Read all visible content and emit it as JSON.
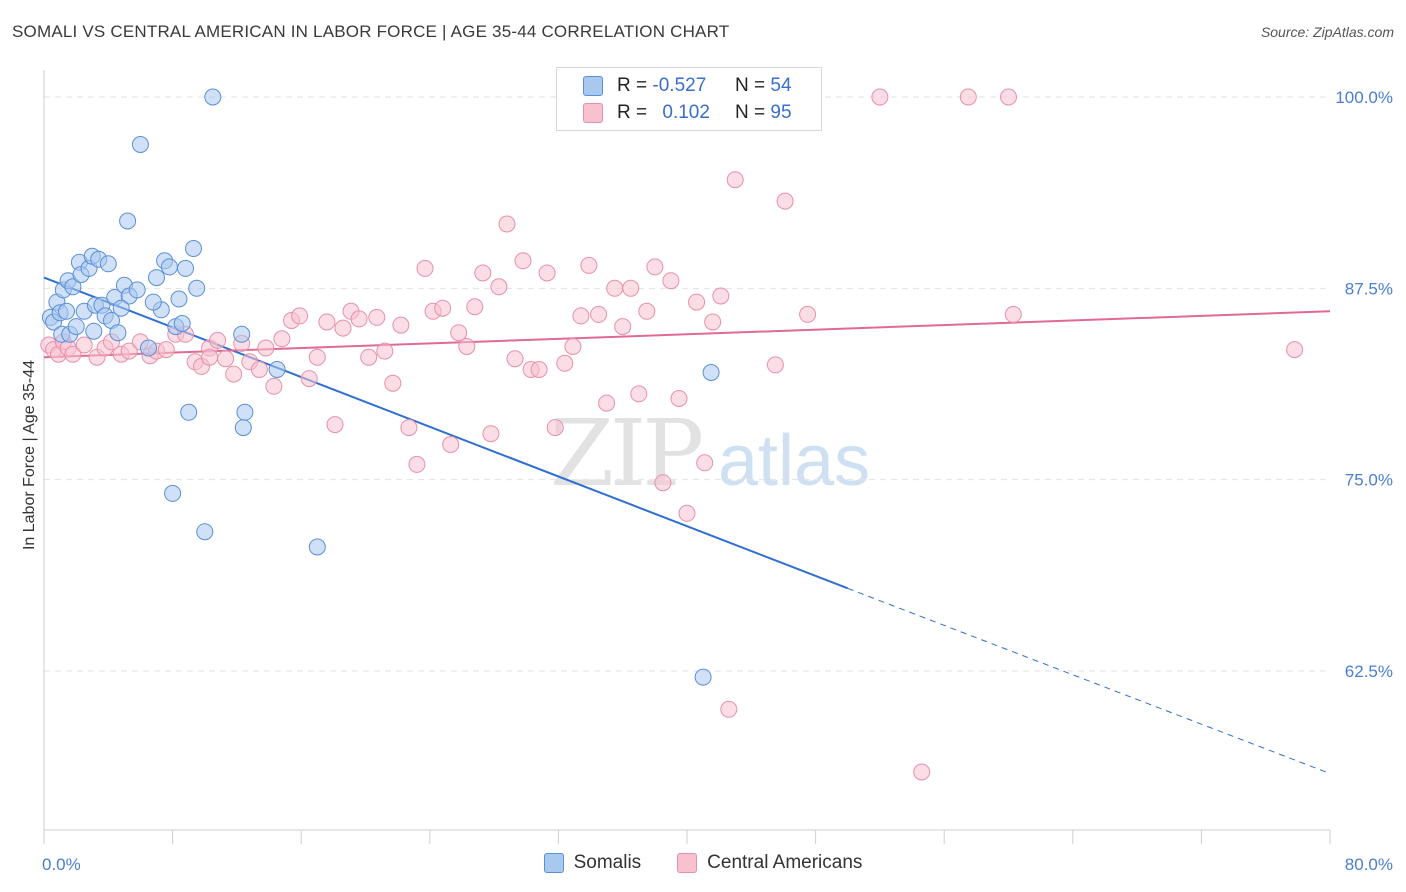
{
  "title": "SOMALI VS CENTRAL AMERICAN IN LABOR FORCE | AGE 35-44 CORRELATION CHART",
  "source": "Source: ZipAtlas.com",
  "watermark": {
    "zip": "ZIP",
    "atlas": "atlas"
  },
  "legend": {
    "rows": [
      {
        "r_label": "R =",
        "r_value": "-0.527",
        "n_label": "N =",
        "n_value": "54"
      },
      {
        "r_label": "R =",
        "r_value": "0.102",
        "n_label": "N =",
        "n_value": "95"
      }
    ]
  },
  "bottom_legend": [
    "Somalis",
    "Central Americans"
  ],
  "colors": {
    "somalis_fill": "#a9c8f0",
    "somalis_stroke": "#5b8fd6",
    "somalis_line": "#2f6fd0",
    "central_fill": "#f7c1d0",
    "central_stroke": "#e690ab",
    "central_line": "#e06a93",
    "grid": "#e3e3e3",
    "axis_text": "#4a7fd0"
  },
  "chart_data": {
    "type": "scatter",
    "title": "SOMALI VS CENTRAL AMERICAN IN LABOR FORCE | AGE 35-44 CORRELATION CHART",
    "xlabel": "",
    "ylabel": "In Labor Force | Age 35-44",
    "xlim": [
      0,
      80
    ],
    "ylim": [
      52,
      102
    ],
    "x_tick_labels": [
      "0.0%",
      "80.0%"
    ],
    "y_ticks": [
      62.5,
      75.0,
      87.5,
      100.0
    ],
    "y_tick_labels": [
      "62.5%",
      "75.0%",
      "87.5%",
      "100.0%"
    ],
    "grid": true,
    "legend_position": "top-center",
    "series": [
      {
        "name": "Somalis",
        "R": -0.527,
        "N": 54,
        "trend": {
          "x0": 0,
          "y0": 88.2,
          "x1": 50.0,
          "y1": 67.9,
          "dashed_to_x": 80,
          "dashed_to_y": 55.8
        },
        "points": [
          [
            0.4,
            85.6
          ],
          [
            0.6,
            85.3
          ],
          [
            0.8,
            86.6
          ],
          [
            1.0,
            85.9
          ],
          [
            1.1,
            84.5
          ],
          [
            1.2,
            87.4
          ],
          [
            1.4,
            86.0
          ],
          [
            1.5,
            88.0
          ],
          [
            1.6,
            84.5
          ],
          [
            1.8,
            87.6
          ],
          [
            2.0,
            85.0
          ],
          [
            2.2,
            89.2
          ],
          [
            2.3,
            88.4
          ],
          [
            2.5,
            86.0
          ],
          [
            2.8,
            88.8
          ],
          [
            3.0,
            89.6
          ],
          [
            3.2,
            86.4
          ],
          [
            3.4,
            89.4
          ],
          [
            3.6,
            86.4
          ],
          [
            3.8,
            85.7
          ],
          [
            4.0,
            89.1
          ],
          [
            4.2,
            85.4
          ],
          [
            4.4,
            86.9
          ],
          [
            4.6,
            84.6
          ],
          [
            5.0,
            87.7
          ],
          [
            5.3,
            87.0
          ],
          [
            5.8,
            87.4
          ],
          [
            6.0,
            96.9
          ],
          [
            6.5,
            83.6
          ],
          [
            7.0,
            88.2
          ],
          [
            7.3,
            86.1
          ],
          [
            7.5,
            89.3
          ],
          [
            7.8,
            88.9
          ],
          [
            8.2,
            85.0
          ],
          [
            8.4,
            86.8
          ],
          [
            8.6,
            85.2
          ],
          [
            8.8,
            88.8
          ],
          [
            9.0,
            79.4
          ],
          [
            9.3,
            90.1
          ],
          [
            9.5,
            87.5
          ],
          [
            10.0,
            71.6
          ],
          [
            10.5,
            100.0
          ],
          [
            12.3,
            84.5
          ],
          [
            12.4,
            78.4
          ],
          [
            12.5,
            79.4
          ],
          [
            14.5,
            82.2
          ],
          [
            17.0,
            70.6
          ],
          [
            5.2,
            91.9
          ],
          [
            3.1,
            84.7
          ],
          [
            4.8,
            86.2
          ],
          [
            6.8,
            86.6
          ],
          [
            8.0,
            74.1
          ],
          [
            41.0,
            62.1
          ],
          [
            41.5,
            82.0
          ]
        ]
      },
      {
        "name": "Central Americans",
        "R": 0.102,
        "N": 95,
        "trend": {
          "x0": 0,
          "y0": 83.0,
          "x1": 80,
          "y1": 86.0
        },
        "points": [
          [
            0.3,
            83.8
          ],
          [
            0.6,
            83.5
          ],
          [
            0.9,
            83.2
          ],
          [
            1.2,
            84.0
          ],
          [
            1.5,
            83.6
          ],
          [
            1.8,
            83.2
          ],
          [
            2.5,
            83.8
          ],
          [
            3.3,
            83.0
          ],
          [
            3.8,
            83.6
          ],
          [
            4.2,
            84.0
          ],
          [
            4.8,
            83.2
          ],
          [
            5.3,
            83.4
          ],
          [
            6.0,
            84.0
          ],
          [
            6.6,
            83.1
          ],
          [
            7.0,
            83.4
          ],
          [
            7.6,
            83.5
          ],
          [
            8.2,
            84.5
          ],
          [
            8.8,
            84.5
          ],
          [
            9.4,
            82.7
          ],
          [
            9.8,
            82.4
          ],
          [
            10.3,
            83.6
          ],
          [
            10.8,
            84.1
          ],
          [
            11.3,
            82.9
          ],
          [
            11.8,
            81.9
          ],
          [
            12.3,
            83.9
          ],
          [
            12.8,
            82.7
          ],
          [
            13.4,
            82.2
          ],
          [
            13.8,
            83.6
          ],
          [
            14.3,
            81.1
          ],
          [
            14.8,
            84.2
          ],
          [
            15.4,
            85.4
          ],
          [
            15.9,
            85.7
          ],
          [
            16.5,
            81.6
          ],
          [
            17.0,
            83.0
          ],
          [
            17.6,
            85.3
          ],
          [
            18.1,
            78.6
          ],
          [
            18.6,
            84.9
          ],
          [
            19.1,
            86.0
          ],
          [
            19.6,
            85.5
          ],
          [
            20.2,
            83.0
          ],
          [
            20.7,
            85.6
          ],
          [
            21.2,
            83.4
          ],
          [
            21.7,
            81.3
          ],
          [
            22.2,
            85.1
          ],
          [
            22.7,
            78.4
          ],
          [
            23.2,
            76.0
          ],
          [
            23.7,
            88.8
          ],
          [
            24.2,
            86.0
          ],
          [
            24.8,
            86.2
          ],
          [
            25.3,
            77.3
          ],
          [
            25.8,
            84.6
          ],
          [
            26.3,
            83.7
          ],
          [
            26.8,
            86.3
          ],
          [
            27.3,
            88.5
          ],
          [
            27.8,
            78.0
          ],
          [
            28.3,
            87.6
          ],
          [
            28.8,
            91.7
          ],
          [
            29.3,
            82.9
          ],
          [
            29.8,
            89.3
          ],
          [
            30.3,
            82.2
          ],
          [
            30.8,
            82.2
          ],
          [
            31.3,
            88.5
          ],
          [
            31.8,
            78.4
          ],
          [
            32.4,
            82.6
          ],
          [
            32.9,
            83.7
          ],
          [
            33.4,
            85.7
          ],
          [
            33.9,
            89.0
          ],
          [
            34.5,
            85.8
          ],
          [
            35.0,
            80.0
          ],
          [
            35.5,
            87.5
          ],
          [
            36.0,
            85.0
          ],
          [
            36.5,
            87.5
          ],
          [
            37.0,
            80.6
          ],
          [
            37.5,
            86.0
          ],
          [
            38.0,
            88.9
          ],
          [
            38.5,
            74.8
          ],
          [
            39.0,
            88.0
          ],
          [
            39.5,
            80.3
          ],
          [
            40.0,
            72.8
          ],
          [
            40.6,
            86.6
          ],
          [
            41.1,
            76.1
          ],
          [
            41.6,
            85.3
          ],
          [
            42.1,
            87.0
          ],
          [
            42.6,
            60.0
          ],
          [
            43.0,
            94.6
          ],
          [
            45.5,
            82.5
          ],
          [
            46.1,
            93.2
          ],
          [
            47.5,
            85.8
          ],
          [
            52.0,
            100.0
          ],
          [
            54.6,
            55.9
          ],
          [
            57.5,
            100.0
          ],
          [
            60.0,
            100.0
          ],
          [
            60.3,
            85.8
          ],
          [
            77.8,
            83.5
          ],
          [
            10.3,
            83.0
          ]
        ]
      }
    ]
  }
}
